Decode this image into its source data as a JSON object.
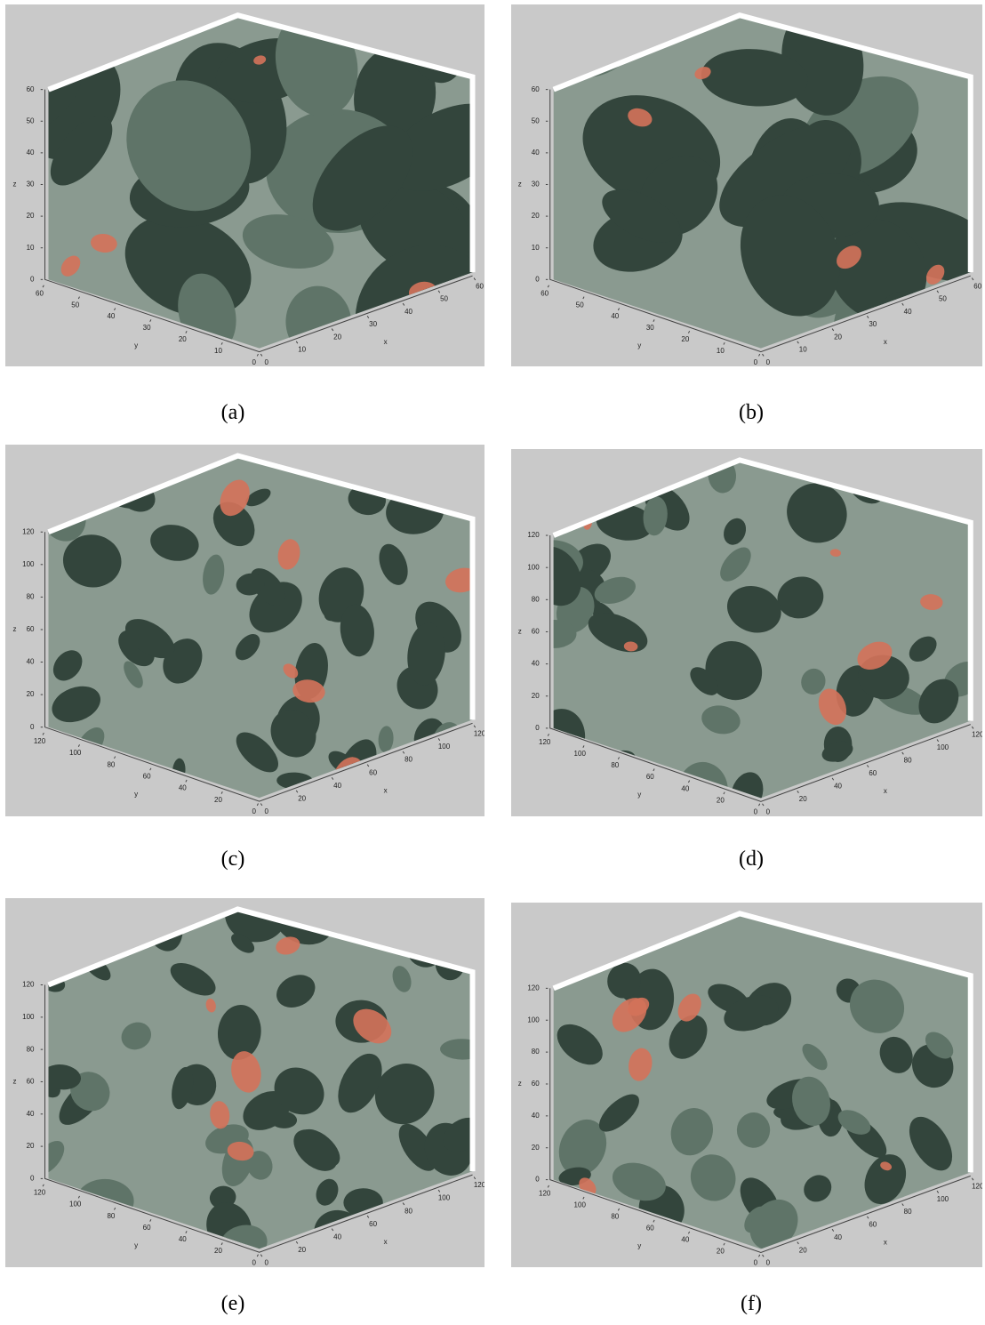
{
  "panels": [
    {
      "caption": "(a)",
      "zlabel": "z",
      "ylabel": "y",
      "xlabel": "x",
      "zticks": [
        0,
        10,
        20,
        30,
        40,
        50,
        60
      ],
      "yticks": [
        0,
        10,
        20,
        30,
        40,
        50,
        60
      ],
      "xticks": [
        0,
        10,
        20,
        30,
        40,
        50,
        60
      ]
    },
    {
      "caption": "(b)",
      "zlabel": "z",
      "ylabel": "y",
      "xlabel": "x",
      "zticks": [
        0,
        10,
        20,
        30,
        40,
        50,
        60
      ],
      "yticks": [
        0,
        10,
        20,
        30,
        40,
        50,
        60
      ],
      "xticks": [
        0,
        10,
        20,
        30,
        40,
        50,
        60
      ]
    },
    {
      "caption": "(c)",
      "zlabel": "z",
      "ylabel": "y",
      "xlabel": "x",
      "zticks": [
        0,
        20,
        40,
        60,
        80,
        100,
        120
      ],
      "yticks": [
        0,
        20,
        40,
        60,
        80,
        100,
        120
      ],
      "xticks": [
        0,
        20,
        40,
        60,
        80,
        100,
        120
      ]
    },
    {
      "caption": "(d)",
      "zlabel": "z",
      "ylabel": "y",
      "xlabel": "x",
      "zticks": [
        0,
        20,
        40,
        60,
        80,
        100,
        120
      ],
      "yticks": [
        0,
        20,
        40,
        60,
        80,
        100,
        120
      ],
      "xticks": [
        0,
        20,
        40,
        60,
        80,
        100,
        120
      ]
    },
    {
      "caption": "(e)",
      "zlabel": "z",
      "ylabel": "y",
      "xlabel": "x",
      "zticks": [
        0,
        20,
        40,
        60,
        80,
        100,
        120
      ],
      "yticks": [
        0,
        20,
        40,
        60,
        80,
        100,
        120
      ],
      "xticks": [
        0,
        20,
        40,
        60,
        80,
        100,
        120
      ]
    },
    {
      "caption": "(f)",
      "zlabel": "z",
      "ylabel": "y",
      "xlabel": "x",
      "zticks": [
        0,
        20,
        40,
        60,
        80,
        100,
        120
      ],
      "yticks": [
        0,
        20,
        40,
        60,
        80,
        100,
        120
      ],
      "xticks": [
        0,
        20,
        40,
        60,
        80,
        100,
        120
      ]
    }
  ]
}
